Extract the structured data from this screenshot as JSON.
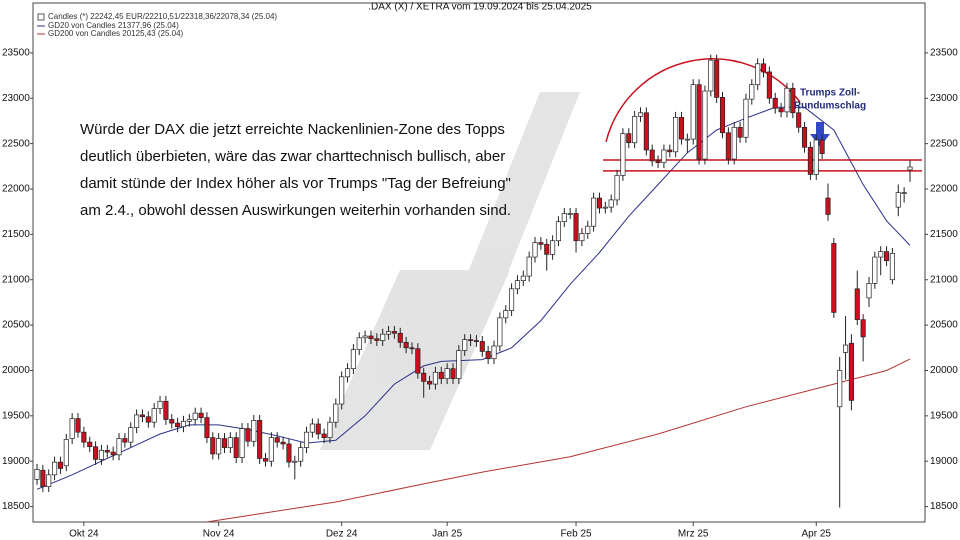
{
  "chart_data": {
    "type": "candlestick",
    "title": ".DAX (X) / XETRA vom 19.09.2024 bis 25.04.2025",
    "candles_name": "Candles (*) 22242,45 EUR/22210,51/22318,36/22078,34 (25.04)",
    "up_color": "#ffffff",
    "down_color": "#c8101e",
    "x": [
      "2024-09-19",
      "2024-09-20",
      "2024-09-23",
      "2024-09-24",
      "2024-09-25",
      "2024-09-26",
      "2024-09-27",
      "2024-09-30",
      "2024-10-01",
      "2024-10-02",
      "2024-10-03",
      "2024-10-04",
      "2024-10-07",
      "2024-10-08",
      "2024-10-09",
      "2024-10-10",
      "2024-10-11",
      "2024-10-14",
      "2024-10-15",
      "2024-10-16",
      "2024-10-17",
      "2024-10-18",
      "2024-10-21",
      "2024-10-22",
      "2024-10-23",
      "2024-10-24",
      "2024-10-25",
      "2024-10-28",
      "2024-10-29",
      "2024-10-30",
      "2024-10-31",
      "2024-11-01",
      "2024-11-04",
      "2024-11-05",
      "2024-11-06",
      "2024-11-07",
      "2024-11-08",
      "2024-11-11",
      "2024-11-12",
      "2024-11-13",
      "2024-11-14",
      "2024-11-15",
      "2024-11-18",
      "2024-11-19",
      "2024-11-20",
      "2024-11-21",
      "2024-11-22",
      "2024-11-25",
      "2024-11-26",
      "2024-11-27",
      "2024-11-28",
      "2024-11-29",
      "2024-12-02",
      "2024-12-03",
      "2024-12-04",
      "2024-12-05",
      "2024-12-06",
      "2024-12-09",
      "2024-12-10",
      "2024-12-11",
      "2024-12-12",
      "2024-12-13",
      "2024-12-16",
      "2024-12-17",
      "2024-12-18",
      "2024-12-19",
      "2024-12-20",
      "2024-12-23",
      "2024-12-27",
      "2024-12-30",
      "2025-01-02",
      "2025-01-03",
      "2025-01-06",
      "2025-01-07",
      "2025-01-08",
      "2025-01-09",
      "2025-01-10",
      "2025-01-13",
      "2025-01-14",
      "2025-01-15",
      "2025-01-16",
      "2025-01-17",
      "2025-01-20",
      "2025-01-21",
      "2025-01-22",
      "2025-01-23",
      "2025-01-24",
      "2025-01-27",
      "2025-01-28",
      "2025-01-29",
      "2025-01-30",
      "2025-01-31",
      "2025-02-03",
      "2025-02-04",
      "2025-02-05",
      "2025-02-06",
      "2025-02-07",
      "2025-02-10",
      "2025-02-11",
      "2025-02-12",
      "2025-02-13",
      "2025-02-14",
      "2025-02-17",
      "2025-02-18",
      "2025-02-19",
      "2025-02-20",
      "2025-02-21",
      "2025-02-24",
      "2025-02-25",
      "2025-02-26",
      "2025-02-27",
      "2025-02-28",
      "2025-03-03",
      "2025-03-04",
      "2025-03-05",
      "2025-03-06",
      "2025-03-07",
      "2025-03-10",
      "2025-03-11",
      "2025-03-12",
      "2025-03-13",
      "2025-03-14",
      "2025-03-17",
      "2025-03-18",
      "2025-03-19",
      "2025-03-20",
      "2025-03-21",
      "2025-03-24",
      "2025-03-25",
      "2025-03-26",
      "2025-03-27",
      "2025-03-28",
      "2025-03-31",
      "2025-04-01",
      "2025-04-02",
      "2025-04-03",
      "2025-04-04",
      "2025-04-07",
      "2025-04-08",
      "2025-04-09",
      "2025-04-10",
      "2025-04-11",
      "2025-04-14",
      "2025-04-15",
      "2025-04-16",
      "2025-04-17",
      "2025-04-22",
      "2025-04-23",
      "2025-04-24",
      "2025-04-25"
    ],
    "open": [
      18800,
      18900,
      18720,
      18850,
      18990,
      18950,
      19250,
      19470,
      19320,
      19210,
      19160,
      19020,
      19120,
      19100,
      19070,
      19250,
      19210,
      19370,
      19510,
      19490,
      19430,
      19580,
      19660,
      19460,
      19420,
      19380,
      19440,
      19460,
      19530,
      19480,
      19260,
      19080,
      19250,
      19150,
      19260,
      19040,
      19360,
      19220,
      19450,
      19030,
      19000,
      19260,
      19210,
      19190,
      18990,
      19000,
      19150,
      19320,
      19410,
      19300,
      19260,
      19430,
      19630,
      19930,
      20020,
      20230,
      20360,
      20380,
      20350,
      20330,
      20400,
      20430,
      20410,
      20310,
      20250,
      20240,
      19970,
      19880,
      19850,
      19980,
      19910,
      20020,
      19910,
      20220,
      20340,
      20330,
      20320,
      20210,
      20130,
      20270,
      20580,
      20660,
      20900,
      20990,
      21040,
      21250,
      21410,
      21390,
      21280,
      21430,
      21640,
      21730,
      21730,
      21430,
      21510,
      21590,
      21900,
      21790,
      21800,
      21880,
      22150,
      22610,
      22510,
      22800,
      22840,
      22430,
      22310,
      22290,
      22430,
      22410,
      22790,
      22550,
      22550,
      23150,
      22330,
      23080,
      23420,
      23010,
      22620,
      22330,
      22680,
      22570,
      22990,
      23150,
      23380,
      23290,
      23000,
      22890,
      22850,
      23110,
      22840,
      22680,
      22460,
      22160,
      22540,
      21900,
      21400,
      19600,
      20200,
      20300,
      20900,
      20560,
      20800,
      20960,
      21250,
      21310,
      21000,
      21800,
      21960,
      22210.51
    ],
    "high": [
      18970,
      18960,
      18910,
      19050,
      19050,
      19300,
      19530,
      19530,
      19380,
      19270,
      19220,
      19180,
      19180,
      19160,
      19310,
      19310,
      19430,
      19570,
      19570,
      19550,
      19640,
      19720,
      19720,
      19520,
      19480,
      19500,
      19520,
      19590,
      19590,
      19540,
      19320,
      19310,
      19310,
      19320,
      19320,
      19420,
      19420,
      19510,
      19510,
      19090,
      19320,
      19320,
      19270,
      19250,
      19060,
      19210,
      19380,
      19470,
      19470,
      19360,
      19490,
      19690,
      19990,
      20080,
      20290,
      20420,
      20440,
      20440,
      20410,
      20460,
      20490,
      20490,
      20470,
      20370,
      20310,
      20300,
      20030,
      19940,
      20040,
      20040,
      20080,
      20080,
      20280,
      20400,
      20400,
      20390,
      20380,
      20270,
      20330,
      20640,
      20720,
      20960,
      21050,
      21100,
      21310,
      21470,
      21470,
      21450,
      21490,
      21700,
      21790,
      21790,
      21790,
      21570,
      21650,
      21960,
      21960,
      21860,
      21940,
      22210,
      22670,
      22670,
      22860,
      22900,
      22900,
      22490,
      22370,
      22490,
      22490,
      22850,
      22850,
      22610,
      23210,
      23210,
      23140,
      23480,
      23480,
      23070,
      22680,
      22740,
      22740,
      23050,
      23210,
      23440,
      23440,
      23350,
      23060,
      22950,
      23170,
      23170,
      22900,
      22740,
      22520,
      22600,
      22600,
      22060,
      21460,
      20150,
      20600,
      20400,
      21100,
      20620,
      21030,
      21310,
      21370,
      21370,
      21350,
      22050,
      22020,
      22318.36
    ],
    "low": [
      18740,
      18660,
      18660,
      18790,
      18860,
      18890,
      19190,
      19260,
      19150,
      19100,
      18960,
      18960,
      19040,
      19010,
      19010,
      19150,
      19150,
      19310,
      19430,
      19370,
      19370,
      19520,
      19400,
      19360,
      19320,
      19320,
      19380,
      19400,
      19420,
      19200,
      19020,
      19020,
      19090,
      19090,
      18980,
      18980,
      19160,
      19160,
      18970,
      18940,
      18940,
      19150,
      19130,
      18930,
      18800,
      18940,
      19090,
      19260,
      19240,
      19200,
      19200,
      19370,
      19570,
      19870,
      19960,
      20170,
      20300,
      20290,
      20270,
      20270,
      20340,
      20350,
      20250,
      20190,
      20180,
      19910,
      19700,
      19790,
      19790,
      19850,
      19850,
      19850,
      19850,
      20160,
      20270,
      20260,
      20150,
      20070,
      20070,
      20210,
      20520,
      20600,
      20840,
      20930,
      20980,
      21190,
      21330,
      21100,
      21220,
      21370,
      21580,
      21670,
      21300,
      21370,
      21450,
      21530,
      21730,
      21730,
      21740,
      21820,
      22090,
      22450,
      22450,
      22740,
      22370,
      22250,
      22230,
      22230,
      22350,
      22350,
      22490,
      22400,
      22490,
      22270,
      22270,
      23020,
      22950,
      22560,
      22270,
      22270,
      22510,
      22510,
      22930,
      23090,
      23230,
      22940,
      22830,
      22790,
      22790,
      22780,
      22620,
      22400,
      22100,
      22100,
      22330,
      21650,
      20580,
      18490,
      19900,
      19560,
      20500,
      20100,
      20700,
      20900,
      21050,
      21150,
      20950,
      21700,
      21850,
      22078.34
    ],
    "close": [
      18910,
      18720,
      18850,
      18990,
      18920,
      19240,
      19470,
      19320,
      19210,
      19160,
      19020,
      19120,
      19100,
      19070,
      19250,
      19210,
      19370,
      19510,
      19490,
      19430,
      19580,
      19660,
      19460,
      19420,
      19380,
      19440,
      19460,
      19530,
      19480,
      19260,
      19080,
      19250,
      19150,
      19260,
      19040,
      19360,
      19220,
      19450,
      19030,
      19000,
      19260,
      19210,
      19190,
      18990,
      19000,
      19150,
      19320,
      19410,
      19300,
      19260,
      19430,
      19630,
      19930,
      20020,
      20230,
      20360,
      20380,
      20350,
      20330,
      20400,
      20430,
      20410,
      20310,
      20250,
      20240,
      19970,
      19880,
      19850,
      19980,
      19910,
      20020,
      19910,
      20220,
      20340,
      20330,
      20320,
      20210,
      20130,
      20270,
      20580,
      20660,
      20900,
      20990,
      21040,
      21250,
      21410,
      21390,
      21280,
      21430,
      21640,
      21730,
      21730,
      21430,
      21510,
      21590,
      21900,
      21790,
      21800,
      21880,
      22150,
      22610,
      22510,
      22800,
      22840,
      22430,
      22310,
      22290,
      22430,
      22410,
      22790,
      22550,
      22550,
      23150,
      22330,
      23080,
      23420,
      23010,
      22620,
      22330,
      22680,
      22570,
      22990,
      23150,
      23380,
      23290,
      23000,
      22890,
      22850,
      23110,
      22840,
      22680,
      22460,
      22160,
      22540,
      22390,
      21720,
      20640,
      20000,
      20280,
      19670,
      20560,
      20370,
      20960,
      21250,
      21310,
      21210,
      21290,
      21960,
      21960,
      22242.45
    ],
    "series": [
      {
        "name": "GD20 von Candles 21377,96 (25.04)",
        "color": "#2b318c",
        "x": [
          "2024-09-19",
          "2024-09-27",
          "2024-10-04",
          "2024-10-11",
          "2024-10-18",
          "2024-10-25",
          "2024-11-01",
          "2024-11-08",
          "2024-11-15",
          "2024-11-22",
          "2024-11-29",
          "2024-12-06",
          "2024-12-13",
          "2024-12-20",
          "2024-12-30",
          "2025-01-10",
          "2025-01-17",
          "2025-01-24",
          "2025-01-31",
          "2025-02-07",
          "2025-02-14",
          "2025-02-21",
          "2025-02-28",
          "2025-03-07",
          "2025-03-14",
          "2025-03-21",
          "2025-03-28",
          "2025-04-04",
          "2025-04-11",
          "2025-04-17",
          "2025-04-25"
        ],
        "values": [
          18690,
          18850,
          19000,
          19150,
          19300,
          19400,
          19400,
          19350,
          19280,
          19200,
          19230,
          19500,
          19850,
          20050,
          20100,
          20120,
          20250,
          20550,
          20950,
          21300,
          21700,
          22050,
          22400,
          22650,
          22780,
          22900,
          22900,
          22650,
          22050,
          21650,
          21377.96
        ]
      },
      {
        "name": "GD200 von Candles 20125,43 (25.04)",
        "color": "#b23434",
        "x": [
          "2024-10-25",
          "2024-11-08",
          "2024-11-29",
          "2024-12-20",
          "2025-01-10",
          "2025-01-31",
          "2025-02-21",
          "2025-03-14",
          "2025-04-04",
          "2025-04-17",
          "2025-04-25"
        ],
        "values": [
          18300,
          18400,
          18550,
          18750,
          18880,
          19050,
          19300,
          19600,
          19850,
          20000,
          20125.43
        ]
      }
    ],
    "ylim": [
      18330,
      24050
    ],
    "yticks": [
      18500,
      19000,
      19500,
      20000,
      20500,
      21000,
      21500,
      22000,
      22500,
      23000,
      23500
    ],
    "xticks": [
      {
        "value": "2024-10-01",
        "label": "Okt 24"
      },
      {
        "value": "2024-11-01",
        "label": "Nov 24"
      },
      {
        "value": "2024-12-02",
        "label": "Dez 24"
      },
      {
        "value": "2025-01-02",
        "label": "Jan 25"
      },
      {
        "value": "2025-02-03",
        "label": "Feb 25"
      },
      {
        "value": "2025-03-03",
        "label": "Mrz 25"
      },
      {
        "value": "2025-04-01",
        "label": "Apr 25"
      }
    ],
    "annotations": {
      "text": [
        "Würde der DAX die jetzt erreichte Nackenlinien-Zone des Topps",
        "deutlich überbieten, wäre das zwar charttechnisch bullisch, aber",
        "damit stünde der Index höher als vor Trumps \"Tag der Befreiung\"",
        "am 2.4., obwohl dessen Auswirkungen weiterhin vorhanden sind."
      ],
      "label": [
        "Trumps Zoll-",
        "Rundumschlag"
      ],
      "levels": [
        22320,
        22200
      ],
      "level_color": "#c8101e"
    }
  }
}
